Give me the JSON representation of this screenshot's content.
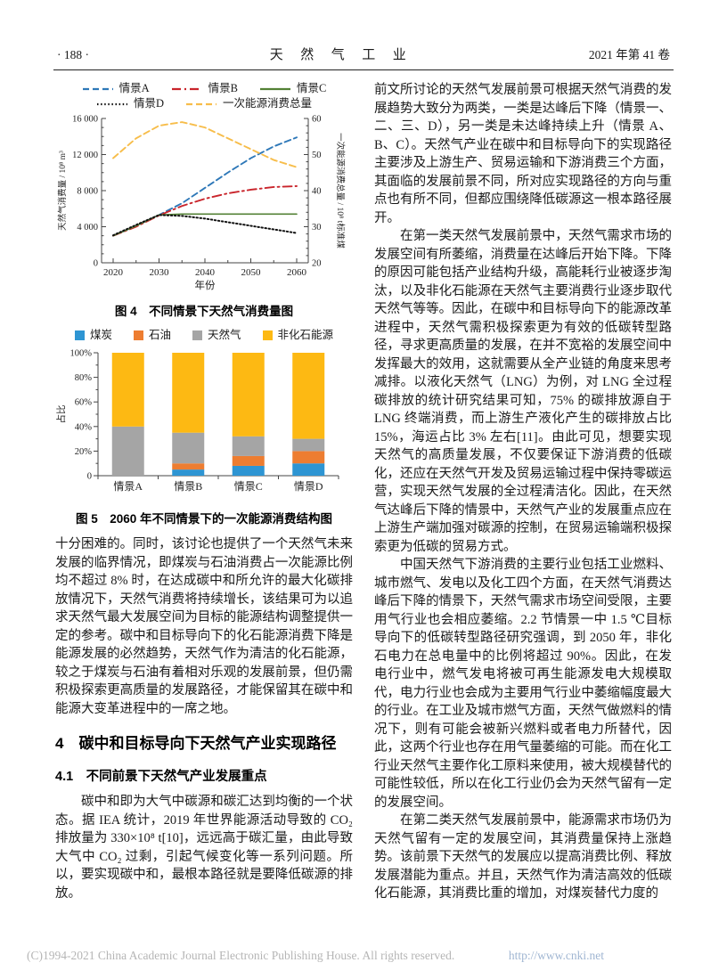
{
  "header": {
    "page_number": "· 188 ·",
    "journal_title": "天　然　气　工　业",
    "issue": "2021 年第 41 卷"
  },
  "chart_data": [
    {
      "type": "line",
      "x": [
        2020,
        2025,
        2030,
        2035,
        2040,
        2045,
        2050,
        2055,
        2060
      ],
      "xticks": [
        2020,
        2030,
        2040,
        2050,
        2060
      ],
      "xlabel": "年份",
      "ylabel_left": "天然气消费量 / 10⁸ m³",
      "ylabel_right": "一次能源消费总量 / 10⁸ t标准煤",
      "ylim_left": [
        0,
        16000
      ],
      "yticks_left": [
        "0",
        "4 000",
        "8 000",
        "12 000",
        "16 000"
      ],
      "ylim_right": [
        20,
        60
      ],
      "yticks_right": [
        "20",
        "30",
        "40",
        "50",
        "60"
      ],
      "legend_position": "top",
      "grid": false,
      "series": [
        {
          "name": "情景A",
          "axis": "left",
          "color": "#2e78b8",
          "dash": "7 4",
          "width": 1.9,
          "values": [
            3000,
            4100,
            5300,
            6600,
            8300,
            10000,
            11600,
            12900,
            13900
          ]
        },
        {
          "name": "情景B",
          "axis": "left",
          "color": "#c9242b",
          "dash": "10 4 2 4",
          "width": 1.9,
          "values": [
            3000,
            4000,
            5250,
            6300,
            7100,
            7700,
            8100,
            8400,
            8500
          ]
        },
        {
          "name": "情景C",
          "axis": "left",
          "color": "#538135",
          "dash": "",
          "width": 1.6,
          "values": [
            3000,
            4100,
            5300,
            5400,
            5400,
            5400,
            5400,
            5400,
            5400
          ]
        },
        {
          "name": "情景D",
          "axis": "left",
          "color": "#111111",
          "dash": "1.5 2.6",
          "width": 2,
          "values": [
            3050,
            4200,
            5300,
            5200,
            4900,
            4500,
            4100,
            3700,
            3300
          ]
        },
        {
          "name": "一次能源消费总量",
          "axis": "right",
          "color": "#f7bd4a",
          "dash": "7 4",
          "width": 1.9,
          "values": [
            49,
            54.5,
            58,
            59,
            57.5,
            54.5,
            51.5,
            48.5,
            46.5
          ]
        }
      ],
      "caption": "图 4　不同情景下天然气消费量图"
    },
    {
      "type": "stacked_bar",
      "categories": [
        "情景A",
        "情景B",
        "情景C",
        "情景D"
      ],
      "ylabel": "占比",
      "ylim": [
        0,
        100
      ],
      "yticks": [
        "0",
        "20%",
        "40%",
        "60%",
        "80%",
        "100%"
      ],
      "legend_position": "top",
      "grid": false,
      "series": [
        {
          "name": "煤炭",
          "color": "#2e95d3",
          "values": [
            0,
            5,
            8,
            10
          ]
        },
        {
          "name": "石油",
          "color": "#ed7d31",
          "values": [
            0,
            5,
            8,
            10
          ]
        },
        {
          "name": "天然气",
          "color": "#a5a5a5",
          "values": [
            40,
            25,
            16,
            10
          ]
        },
        {
          "name": "非化石能源",
          "color": "#fdb913",
          "values": [
            60,
            65,
            68,
            70
          ]
        }
      ],
      "caption": "图 5　2060 年不同情景下的一次能源消费结构图"
    }
  ],
  "left_column": {
    "continued_paragraph": "十分困难的。同时，该讨论也提供了一个天然气未来发展的临界情况，即煤炭与石油消费占一次能源比例均不超过 8% 时，在达成碳中和所允许的最大化碳排放情况下，天然气消费将持续增长，该结果可为以追求天然气最大发展空间为目标的能源结构调整提供一定的参考。碳中和目标导向下的化石能源消费下降是能源发展的必然趋势，天然气作为清洁的化石能源，较之于煤炭与石油有着相对乐观的发展前景，但仍需积极探索更高质量的发展路径，才能保留其在碳中和能源大变革进程中的一席之地。",
    "section4_title": "4　碳中和目标导向下天然气产业实现路径",
    "section41_title": "4.1　不同前景下天然气产业发展重点",
    "para41": "碳中和即为大气中碳源和碳汇达到均衡的一个状态。据 IEA 统计，2019 年世界能源活动导致的 CO₂排放量为 330×10⁸ t[10]，远远高于碳汇量，由此导致大气中 CO₂ 过剩，引起气候变化等一系列问题。所以，要实现碳中和，最根本路径就是要降低碳源的排放。"
  },
  "right_column": {
    "para1": "前文所讨论的天然气发展前景可根据天然气消费的发展趋势大致分为两类，一类是达峰后下降（情景一、二、三、D），另一类是未达峰持续上升（情景 A、B、C）。天然气产业在碳中和目标导向下的实现路径主要涉及上游生产、贸易运输和下游消费三个方面，其面临的发展前景不同，所对应实现路径的方向与重点也有所不同，但都应围绕降低碳源这一根本路径展开。",
    "para2": "在第一类天然气发展前景中，天然气需求市场的发展空间有所萎缩，消费量在达峰后开始下降。下降的原因可能包括产业结构升级，高能耗行业被逐步淘汰，以及非化石能源在天然气主要消费行业逐步取代天然气等等。因此，在碳中和目标导向下的能源改革进程中，天然气需积极探索更为有效的低碳转型路径，寻求更高质量的发展，在并不宽裕的发展空间中发挥最大的效用，这就需要从全产业链的角度来思考减排。以液化天然气（LNG）为例，对 LNG 全过程碳排放的统计研究结果可知，75% 的碳排放源自于 LNG 终端消费，而上游生产液化产生的碳排放占比 15%，海运占比 3% 左右[11]。由此可见，想要实现天然气的高质量发展，不仅要保证下游消费的低碳化，还应在天然气开发及贸易运输过程中保持零碳运营，实现天然气发展的全过程清洁化。因此，在天然气达峰后下降的情景中，天然气产业的发展重点应在上游生产端加强对碳源的控制，在贸易运输端积极探索更为低碳的贸易方式。",
    "para3": "中国天然气下游消费的主要行业包括工业燃料、城市燃气、发电以及化工四个方面，在天然气消费达峰后下降的情景下，天然气需求市场空间受限，主要用气行业也会相应萎缩。2.2 节情景一中 1.5 ℃目标导向下的低碳转型路径研究强调，到 2050 年，非化石电力在总电量中的比例将超过 90%。因此，在发电行业中，燃气发电将被可再生能源发电大规模取代，电力行业也会成为主要用气行业中萎缩幅度最大的行业。在工业及城市燃气方面，天然气做燃料的情况下，则有可能会被新兴燃料或者电力所替代，因此，这两个行业也存在用气量萎缩的可能。而在化工行业天然气主要作化工原料来使用，被大规模替代的可能性较低，所以在化工行业仍会为天然气留有一定的发展空间。",
    "para4": "在第二类天然气发展前景中，能源需求市场仍为天然气留有一定的发展空间，其消费量保持上涨趋势。该前景下天然气的发展应以提高消费比例、释放发展潜能为重点。并且，天然气作为清洁高效的低碳化石能源，其消费比重的增加，对煤炭替代力度的"
  },
  "footer": {
    "copyright": "(C)1994-2021 China Academic Journal Electronic Publishing House. All rights reserved.",
    "url": "http://www.cnki.net"
  }
}
